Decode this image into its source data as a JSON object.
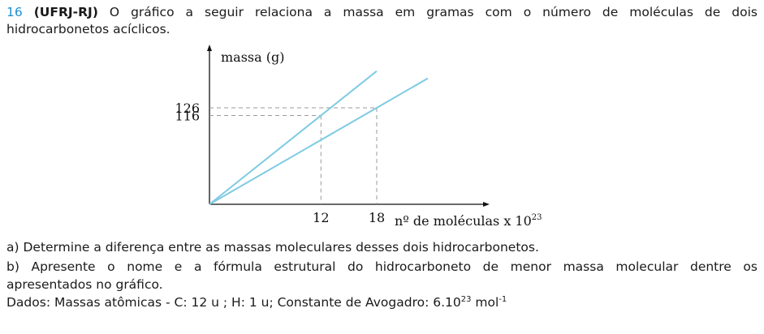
{
  "question": {
    "number": "16",
    "source": "(UFRJ-RJ)",
    "intro_line1": "O gráfico a seguir relaciona a massa em gramas com o número de moléculas de dois",
    "intro_line2": "hidrocarbonetos acíclicos."
  },
  "chart_data": {
    "type": "line",
    "ylabel": "massa (g)",
    "xlabel": "nº de moléculas x 10",
    "xlabel_exponent": "23",
    "x_ticks": [
      "12",
      "18"
    ],
    "y_ticks": [
      "116",
      "126"
    ],
    "series": [
      {
        "x": [
          0,
          12,
          18
        ],
        "y": [
          0,
          116,
          174
        ]
      },
      {
        "x": [
          0,
          18,
          23.5
        ],
        "y": [
          0,
          126,
          164.5
        ]
      }
    ]
  },
  "items": {
    "a": "a) Determine a diferença entre as massas moleculares desses dois hidrocarbonetos.",
    "b_line1": "b) Apresente o nome e a fórmula estrutural do hidrocarboneto de menor massa molecular dentre os",
    "b_line2": "apresentados no gráfico.",
    "dados_prefix": "Dados: Massas atômicas - C: 12 u ; H: 1 u; Constante de Avogadro: 6.10",
    "dados_exp1": "23",
    "dados_unit": " mol",
    "dados_exp2": "-1"
  }
}
